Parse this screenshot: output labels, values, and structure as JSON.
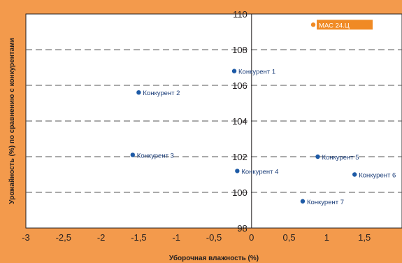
{
  "chart_data": {
    "type": "scatter",
    "title": "",
    "xlabel": "Уборочная влажность (%)",
    "ylabel": "Урожайность (%) по сравнению с конкурентами",
    "xlim": [
      -3,
      2
    ],
    "ylim": [
      98,
      110
    ],
    "x_ticks": [
      "-3",
      "-2,5",
      "-2",
      "-1,5",
      "-1",
      "-0,5",
      "0",
      "0,5",
      "1",
      "1,5"
    ],
    "y_ticks": [
      "98",
      "100",
      "102",
      "104",
      "106",
      "108",
      "110"
    ],
    "grid": {
      "horizontal_dashed": true,
      "zero_lines": true
    },
    "points": [
      {
        "label": "МАС 24.Ц",
        "x": 0.82,
        "y": 109.4,
        "highlight": true
      },
      {
        "label": "Конкурент 1",
        "x": -0.23,
        "y": 106.8
      },
      {
        "label": "Конкурент 2",
        "x": -1.5,
        "y": 105.6
      },
      {
        "label": "Конкурент 3",
        "x": -1.58,
        "y": 102.1
      },
      {
        "label": "Конкурент 4",
        "x": -0.19,
        "y": 101.2
      },
      {
        "label": "Конкурент 5",
        "x": 0.88,
        "y": 102.0
      },
      {
        "label": "Конкурент 6",
        "x": 1.37,
        "y": 101.0
      },
      {
        "label": "Конкурент 7",
        "x": 0.68,
        "y": 99.5
      }
    ],
    "colors": {
      "background": "#f39a4c",
      "plot_area": "#ffffff",
      "point": "#1d5aa6",
      "highlight": "#f08a24",
      "text": "#231f20"
    }
  }
}
